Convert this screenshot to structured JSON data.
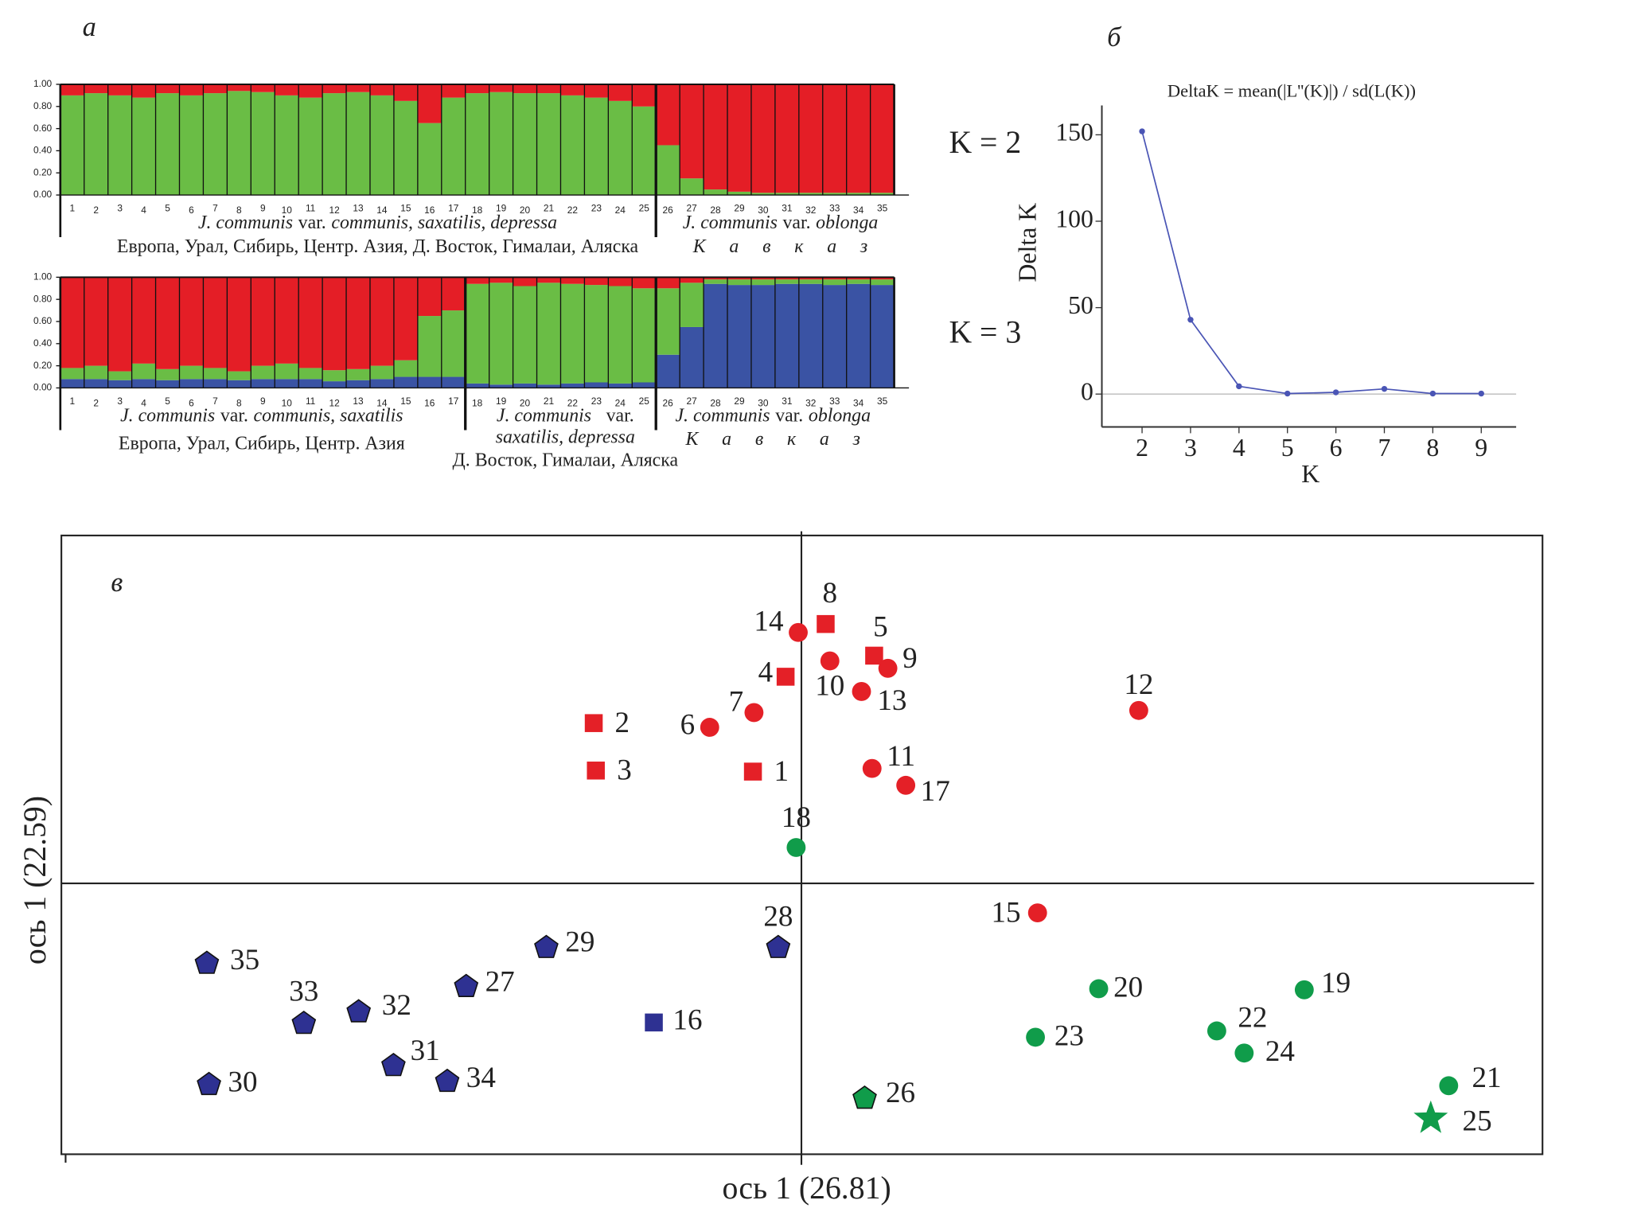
{
  "chart_data": [
    {
      "type": "stacked_bar",
      "panel": "а",
      "annotation": "K = 2",
      "categories": [
        "1",
        "2",
        "3",
        "4",
        "5",
        "6",
        "7",
        "8",
        "9",
        "10",
        "11",
        "12",
        "13",
        "14",
        "15",
        "16",
        "17",
        "18",
        "19",
        "20",
        "21",
        "22",
        "23",
        "24",
        "25",
        "26",
        "27",
        "28",
        "29",
        "30",
        "31",
        "32",
        "33",
        "34",
        "35"
      ],
      "ylim": [
        0,
        1
      ],
      "yticks": [
        {
          "value": 0,
          "label": "0.00"
        },
        {
          "value": 0.2,
          "label": "0.20"
        },
        {
          "value": 0.4,
          "label": "0.40"
        },
        {
          "value": 0.6,
          "label": "0.60"
        },
        {
          "value": 0.8,
          "label": "0.80"
        },
        {
          "value": 1,
          "label": "1.00"
        }
      ],
      "series": [
        {
          "color": "#6abd45",
          "values": [
            0.9,
            0.92,
            0.9,
            0.88,
            0.92,
            0.9,
            0.92,
            0.94,
            0.93,
            0.9,
            0.88,
            0.92,
            0.93,
            0.9,
            0.85,
            0.65,
            0.88,
            0.92,
            0.93,
            0.92,
            0.92,
            0.9,
            0.88,
            0.85,
            0.8,
            0.45,
            0.15,
            0.05,
            0.03,
            0.02,
            0.02,
            0.02,
            0.02,
            0.02,
            0.02
          ]
        },
        {
          "color": "#e41e26",
          "values": [
            0.1,
            0.08,
            0.1,
            0.12,
            0.08,
            0.1,
            0.08,
            0.06,
            0.07,
            0.1,
            0.12,
            0.08,
            0.07,
            0.1,
            0.15,
            0.35,
            0.12,
            0.08,
            0.07,
            0.08,
            0.08,
            0.1,
            0.12,
            0.15,
            0.2,
            0.55,
            0.85,
            0.95,
            0.97,
            0.98,
            0.98,
            0.98,
            0.98,
            0.98,
            0.98
          ]
        }
      ],
      "groups": [
        {
          "label": [
            "J. communis",
            "var.",
            "communis, saxatilis, depressa"
          ],
          "region": "Европа, Урал, Сибирь, Центр. Азия, Д. Восток, Гималаи, Аляска"
        },
        {
          "label": [
            "J. communis",
            "var.",
            "oblonga"
          ],
          "region": "К а в к а з"
        }
      ]
    },
    {
      "type": "stacked_bar",
      "annotation": "K = 3",
      "categories": [
        "1",
        "2",
        "3",
        "4",
        "5",
        "6",
        "7",
        "8",
        "9",
        "10",
        "11",
        "12",
        "13",
        "14",
        "15",
        "16",
        "17",
        "18",
        "19",
        "20",
        "21",
        "22",
        "23",
        "24",
        "25",
        "26",
        "27",
        "28",
        "29",
        "30",
        "31",
        "32",
        "33",
        "34",
        "35"
      ],
      "ylim": [
        0,
        1
      ],
      "yticks": [
        {
          "value": 0,
          "label": "0.00"
        },
        {
          "value": 0.2,
          "label": "0.20"
        },
        {
          "value": 0.4,
          "label": "0.40"
        },
        {
          "value": 0.6,
          "label": "0.60"
        },
        {
          "value": 0.8,
          "label": "0.80"
        },
        {
          "value": 1,
          "label": "1.00"
        }
      ],
      "series": [
        {
          "color": "#3a53a4",
          "values": [
            0.08,
            0.08,
            0.07,
            0.08,
            0.07,
            0.08,
            0.08,
            0.07,
            0.08,
            0.08,
            0.08,
            0.06,
            0.07,
            0.08,
            0.1,
            0.1,
            0.1,
            0.04,
            0.03,
            0.04,
            0.03,
            0.04,
            0.05,
            0.04,
            0.05,
            0.3,
            0.55,
            0.94,
            0.93,
            0.93,
            0.94,
            0.94,
            0.93,
            0.94,
            0.93
          ]
        },
        {
          "color": "#6abd45",
          "values": [
            0.1,
            0.12,
            0.08,
            0.14,
            0.1,
            0.12,
            0.1,
            0.08,
            0.12,
            0.14,
            0.1,
            0.1,
            0.1,
            0.12,
            0.15,
            0.55,
            0.6,
            0.9,
            0.92,
            0.88,
            0.92,
            0.9,
            0.88,
            0.88,
            0.85,
            0.6,
            0.4,
            0.04,
            0.05,
            0.05,
            0.04,
            0.04,
            0.05,
            0.04,
            0.05
          ]
        },
        {
          "color": "#e41e26",
          "values": [
            0.82,
            0.8,
            0.85,
            0.78,
            0.83,
            0.8,
            0.82,
            0.85,
            0.8,
            0.78,
            0.82,
            0.84,
            0.83,
            0.8,
            0.75,
            0.35,
            0.3,
            0.06,
            0.05,
            0.08,
            0.05,
            0.06,
            0.07,
            0.08,
            0.1,
            0.1,
            0.05,
            0.02,
            0.02,
            0.02,
            0.02,
            0.02,
            0.02,
            0.02,
            0.02
          ]
        }
      ],
      "groups": [
        {
          "label": [
            "J. communis",
            "var.",
            "communis, saxatilis"
          ],
          "region": "Европа, Урал, Сибирь, Центр. Азия"
        },
        {
          "label": [
            "J. communis",
            "var.",
            "saxatilis, depressa"
          ],
          "region": "Д. Восток, Гималаи, Аляска"
        },
        {
          "label": [
            "J. communis",
            "var.",
            "oblonga"
          ],
          "region": "К а в к а з"
        }
      ]
    },
    {
      "type": "line",
      "panel": "б",
      "title": "DeltaK = mean(|L''(K)|) / sd(L(K))",
      "x_label": "K",
      "y_label": "Delta K",
      "x": [
        2,
        3,
        4,
        5,
        6,
        7,
        8,
        9
      ],
      "series": [
        {
          "color": "#4a55b5",
          "values": [
            152,
            43,
            4.5,
            0.3,
            1,
            3,
            0.3,
            0.3
          ]
        }
      ],
      "xlim": [
        1.17,
        9.72
      ],
      "ylim": [
        -19,
        167
      ],
      "xticks": [
        2,
        3,
        4,
        5,
        6,
        7,
        8,
        9
      ],
      "yticks": [
        0,
        50,
        100,
        150
      ]
    },
    {
      "type": "scatter",
      "panel": "в",
      "x_label": "ось 1 (26.81)",
      "y_label": "ось 1 (22.59)",
      "xlim": [
        -7.02,
        7.03
      ],
      "ylim": [
        -2.57,
        3.3
      ],
      "points": [
        {
          "label": "1",
          "x": -0.46,
          "y": 1.06,
          "marker": "square",
          "color": "#e42027"
        },
        {
          "label": "2",
          "x": -1.97,
          "y": 1.52,
          "marker": "square",
          "color": "#e42027"
        },
        {
          "label": "3",
          "x": -1.95,
          "y": 1.07,
          "marker": "square",
          "color": "#e42027"
        },
        {
          "label": "4",
          "x": -0.15,
          "y": 1.96,
          "marker": "square",
          "color": "#e42027"
        },
        {
          "label": "5",
          "x": 0.69,
          "y": 2.16,
          "marker": "square",
          "color": "#e42027"
        },
        {
          "label": "6",
          "x": -0.87,
          "y": 1.48,
          "marker": "circle",
          "color": "#e42027"
        },
        {
          "label": "7",
          "x": -0.45,
          "y": 1.62,
          "marker": "circle",
          "color": "#e42027"
        },
        {
          "label": "8",
          "x": 0.23,
          "y": 2.46,
          "marker": "square",
          "color": "#e42027"
        },
        {
          "label": "9",
          "x": 0.82,
          "y": 2.04,
          "marker": "circle",
          "color": "#e42027"
        },
        {
          "label": "10",
          "x": 0.27,
          "y": 2.11,
          "marker": "circle",
          "color": "#e42027"
        },
        {
          "label": "11",
          "x": 0.67,
          "y": 1.09,
          "marker": "circle",
          "color": "#e42027"
        },
        {
          "label": "12",
          "x": 3.2,
          "y": 1.64,
          "marker": "circle",
          "color": "#e42027"
        },
        {
          "label": "13",
          "x": 0.57,
          "y": 1.82,
          "marker": "circle",
          "color": "#e42027"
        },
        {
          "label": "14",
          "x": -0.03,
          "y": 2.38,
          "marker": "circle",
          "color": "#e42027"
        },
        {
          "label": "15",
          "x": 2.24,
          "y": -0.28,
          "marker": "circle",
          "color": "#e42027"
        },
        {
          "label": "16",
          "x": -1.4,
          "y": -1.32,
          "marker": "square",
          "color": "#2e3192"
        },
        {
          "label": "17",
          "x": 0.99,
          "y": 0.93,
          "marker": "circle",
          "color": "#e42027"
        },
        {
          "label": "18",
          "x": -0.05,
          "y": 0.34,
          "marker": "circle",
          "color": "#109c4a"
        },
        {
          "label": "19",
          "x": 4.77,
          "y": -1.01,
          "marker": "circle",
          "color": "#109c4a"
        },
        {
          "label": "20",
          "x": 2.82,
          "y": -1.0,
          "marker": "circle",
          "color": "#109c4a"
        },
        {
          "label": "21",
          "x": 6.14,
          "y": -1.92,
          "marker": "circle",
          "color": "#109c4a"
        },
        {
          "label": "22",
          "x": 3.94,
          "y": -1.4,
          "marker": "circle",
          "color": "#109c4a"
        },
        {
          "label": "23",
          "x": 2.22,
          "y": -1.46,
          "marker": "circle",
          "color": "#109c4a"
        },
        {
          "label": "24",
          "x": 4.2,
          "y": -1.61,
          "marker": "circle",
          "color": "#109c4a"
        },
        {
          "label": "25",
          "x": 5.97,
          "y": -2.22,
          "marker": "star",
          "color": "#109c4a"
        },
        {
          "label": "26",
          "x": 0.6,
          "y": -2.03,
          "marker": "pentagon",
          "color": "#109c4a"
        },
        {
          "label": "27",
          "x": -3.18,
          "y": -0.97,
          "marker": "pentagon",
          "color": "#2e3192"
        },
        {
          "label": "28",
          "x": -0.22,
          "y": -0.6,
          "marker": "pentagon",
          "color": "#2e3192"
        },
        {
          "label": "29",
          "x": -2.42,
          "y": -0.6,
          "marker": "pentagon",
          "color": "#2e3192"
        },
        {
          "label": "30",
          "x": -5.62,
          "y": -1.9,
          "marker": "pentagon",
          "color": "#2e3192"
        },
        {
          "label": "31",
          "x": -3.87,
          "y": -1.72,
          "marker": "pentagon",
          "color": "#2e3192"
        },
        {
          "label": "32",
          "x": -4.2,
          "y": -1.21,
          "marker": "pentagon",
          "color": "#2e3192"
        },
        {
          "label": "33",
          "x": -4.72,
          "y": -1.32,
          "marker": "pentagon",
          "color": "#2e3192"
        },
        {
          "label": "34",
          "x": -3.36,
          "y": -1.87,
          "marker": "pentagon",
          "color": "#2e3192"
        },
        {
          "label": "35",
          "x": -5.64,
          "y": -0.75,
          "marker": "pentagon",
          "color": "#2e3192"
        }
      ]
    }
  ]
}
